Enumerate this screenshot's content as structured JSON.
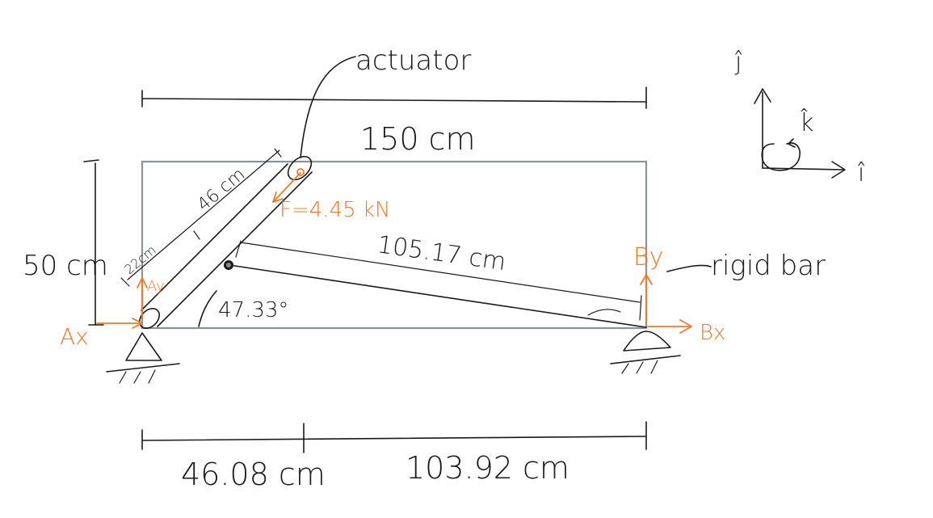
{
  "labels": {
    "actuator": "actuator",
    "top_length": "150 cm",
    "height": "50 cm",
    "actuator_upper": "46 cm",
    "actuator_lower": "22cm",
    "force": "F=4.45 kN",
    "rigid_bar_length": "105.17 cm",
    "angle": "47.33°",
    "rigid_bar": "rigid bar",
    "left_segment": "46.08 cm",
    "right_segment": "103.92 cm"
  },
  "forces": {
    "ax": "Ax",
    "ay": "Ay",
    "bx": "Bx",
    "by": "By"
  },
  "axes": {
    "i": "î",
    "j": "ĵ",
    "k": "k̂"
  },
  "colors": {
    "ink": "#1a1a1a",
    "frame": "#8a9399",
    "force": "#f07a2a"
  }
}
